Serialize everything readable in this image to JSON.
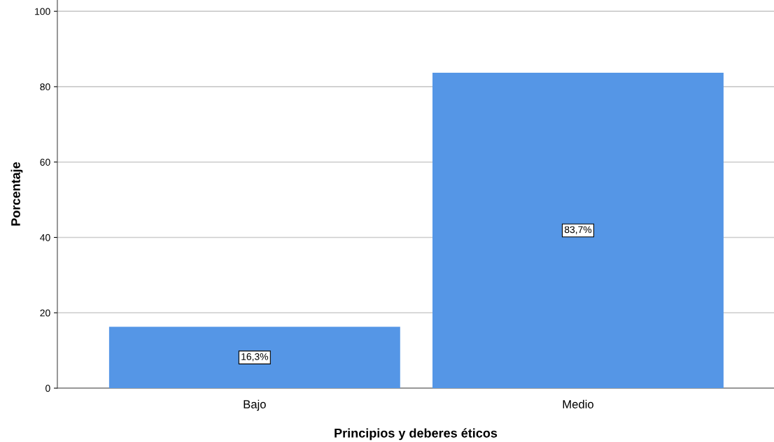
{
  "chart_data": {
    "type": "bar",
    "xlabel": "Principios y deberes éticos",
    "ylabel": "Porcentaje",
    "categories": [
      "Bajo",
      "Medio"
    ],
    "values": [
      16.3,
      83.7
    ],
    "value_labels": [
      "16,3%",
      "83,7%"
    ],
    "color": "#5596e6",
    "ylim": [
      0,
      103
    ],
    "yticks": [
      0,
      20,
      40,
      60,
      80,
      100
    ],
    "grid": "y"
  }
}
